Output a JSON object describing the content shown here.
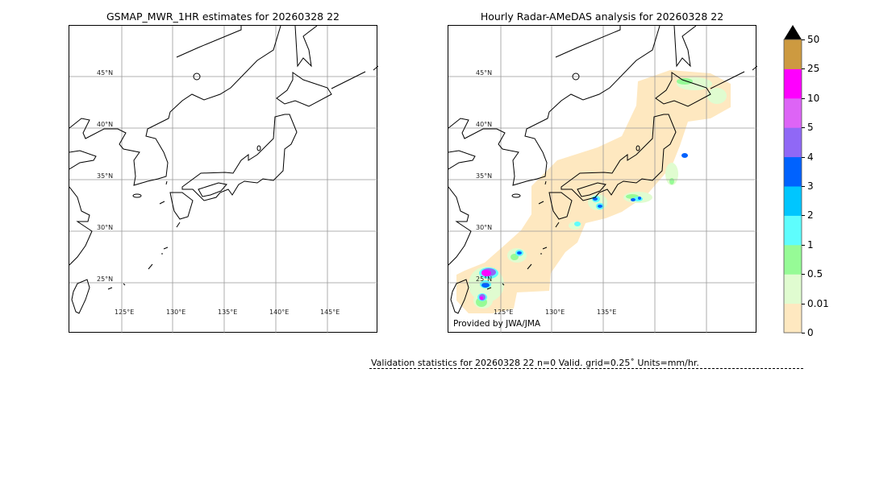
{
  "left_panel": {
    "title": "GSMAP_MWR_1HR estimates for 20260328 22",
    "lat_labels": [
      "45°N",
      "40°N",
      "35°N",
      "30°N",
      "25°N"
    ],
    "lon_labels": [
      "125°E",
      "130°E",
      "135°E",
      "140°E",
      "145°E"
    ]
  },
  "right_panel": {
    "title": "Hourly Radar-AMeDAS analysis for 20260328 22",
    "lat_labels": [
      "45°N",
      "40°N",
      "35°N",
      "30°N",
      "25°N"
    ],
    "lon_labels": [
      "125°E",
      "130°E",
      "135°E"
    ],
    "credit": "Provided by JWA/JMA"
  },
  "colorbar": {
    "ticks": [
      "0",
      "0.01",
      "0.5",
      "1",
      "2",
      "3",
      "4",
      "5",
      "10",
      "25",
      "50"
    ],
    "colors": [
      "#fee8c0",
      "#e0fcd0",
      "#96fb96",
      "#5efdfd",
      "#00c6fe",
      "#0062fe",
      "#9068f6",
      "#dd64f6",
      "#fe00fe",
      "#cd9a40"
    ],
    "extend_color": "#000000"
  },
  "validation": {
    "text": "Validation statistics for 20260328 22  n=0 Valid. grid=0.25˚ Units=mm/hr."
  }
}
